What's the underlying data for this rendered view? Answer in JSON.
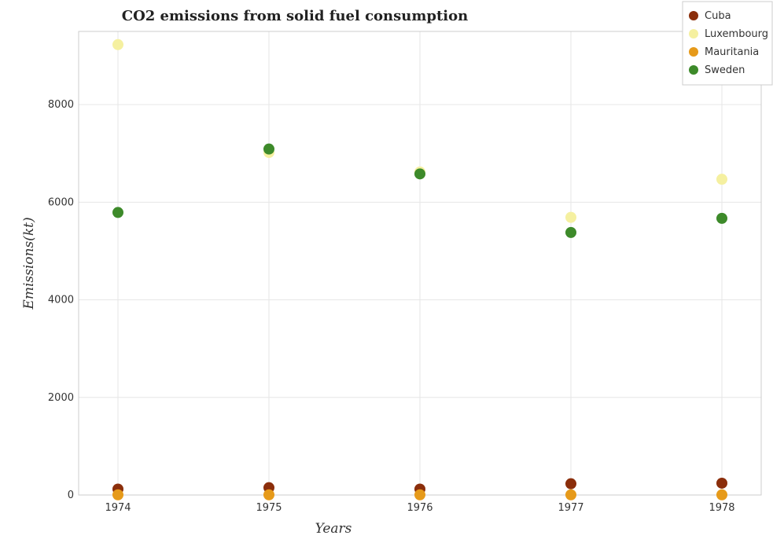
{
  "chart_data": {
    "type": "scatter",
    "title": "CO2 emissions from solid fuel consumption",
    "xlabel": "Years",
    "ylabel": "Emissions(kt)",
    "categories": [
      "1974",
      "1975",
      "1976",
      "1977",
      "1978"
    ],
    "y_ticks": [
      "0",
      "2000",
      "4000",
      "6000",
      "8000"
    ],
    "ylim": [
      0,
      9500
    ],
    "grid": true,
    "legend_position": "top-right",
    "series": [
      {
        "name": "Cuba",
        "color": "#8b2e0b",
        "values": [
          121,
          150,
          121,
          231,
          242
        ]
      },
      {
        "name": "Luxembourg",
        "color": "#f5f0a0",
        "values": [
          9230,
          7020,
          6620,
          5690,
          6470
        ]
      },
      {
        "name": "Mauritania",
        "color": "#e69a1a",
        "values": [
          4,
          4,
          4,
          4,
          4
        ]
      },
      {
        "name": "Sweden",
        "color": "#3d8a2a",
        "values": [
          5790,
          7090,
          6580,
          5380,
          5670
        ]
      }
    ]
  }
}
